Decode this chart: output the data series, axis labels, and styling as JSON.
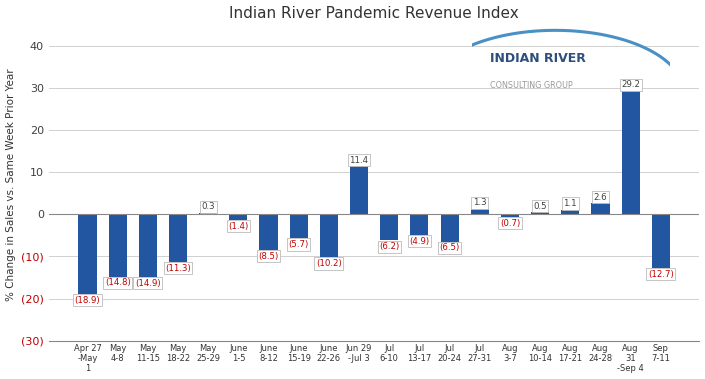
{
  "title": "Indian River Pandemic Revenue Index",
  "ylabel": "% Change in Sales vs. Same Week Prior Year",
  "categories": [
    "Apr 27\n-May\n1",
    "May\n4-8",
    "May\n11-15",
    "May\n18-22",
    "May\n25-29",
    "June\n1-5",
    "June\n8-12",
    "June\n15-19",
    "June\n22-26",
    "Jun 29\n-Jul 3",
    "Jul\n6-10",
    "Jul\n13-17",
    "Jul\n20-24",
    "Jul\n27-31",
    "Aug\n3-7",
    "Aug\n10-14",
    "Aug\n17-21",
    "Aug\n24-28",
    "Aug\n31\n-Sep 4",
    "Sep\n7-11"
  ],
  "values": [
    -18.9,
    -14.8,
    -14.9,
    -11.3,
    0.3,
    -1.4,
    -8.5,
    -5.7,
    -10.2,
    11.4,
    -6.2,
    -4.9,
    -6.5,
    1.3,
    -0.7,
    0.5,
    1.1,
    2.6,
    29.2,
    -12.7
  ],
  "bar_color": "#2356a0",
  "neg_label_color": "#c00000",
  "pos_label_color": "#404040",
  "neg_ytick_color": "#c00000",
  "pos_ytick_color": "#404040",
  "ylim": [
    -30,
    44
  ],
  "yticks": [
    -30,
    -20,
    -10,
    0,
    10,
    20,
    30,
    40
  ],
  "bg_color": "#ffffff",
  "grid_color": "#d0d0d0",
  "logo_text1": "INDIAN RIVER",
  "logo_text2": "CONSULTING GROUP",
  "logo_color1": "#2e4e7e",
  "logo_color2": "#999999",
  "arc_color": "#4a90c4"
}
